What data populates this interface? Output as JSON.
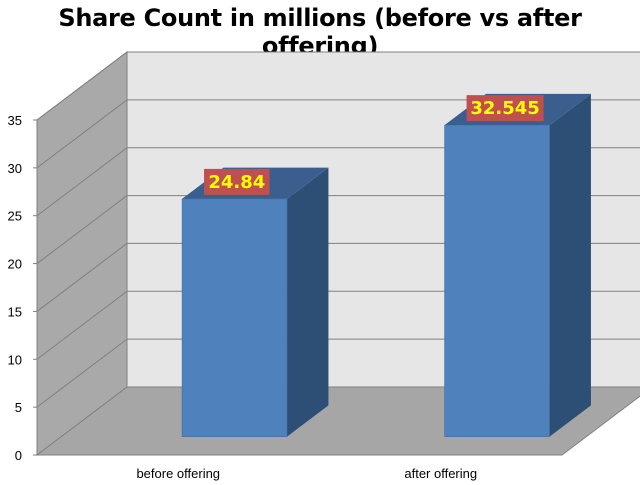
{
  "chart_data": {
    "type": "bar",
    "title": "Share Count in millions (before vs after offering)",
    "categories": [
      "before offering",
      "after offering"
    ],
    "values": [
      24.84,
      32.545
    ],
    "data_labels": [
      "24.84",
      "32.545"
    ],
    "ylim": [
      0,
      35
    ],
    "yticks": [
      "0",
      "5",
      "10",
      "15",
      "20",
      "25",
      "30",
      "35"
    ],
    "grid": true,
    "legend": "none",
    "colors": {
      "bar_front": "#4f81bd",
      "bar_side": "#2e4f75",
      "bar_top": "#3a5f8f",
      "back_wall": "#e6e6e6",
      "side_wall": "#a9a9a9",
      "floor": "#a6a6a6",
      "label_bg": "#c0504d",
      "label_text": "#ffff00"
    }
  }
}
